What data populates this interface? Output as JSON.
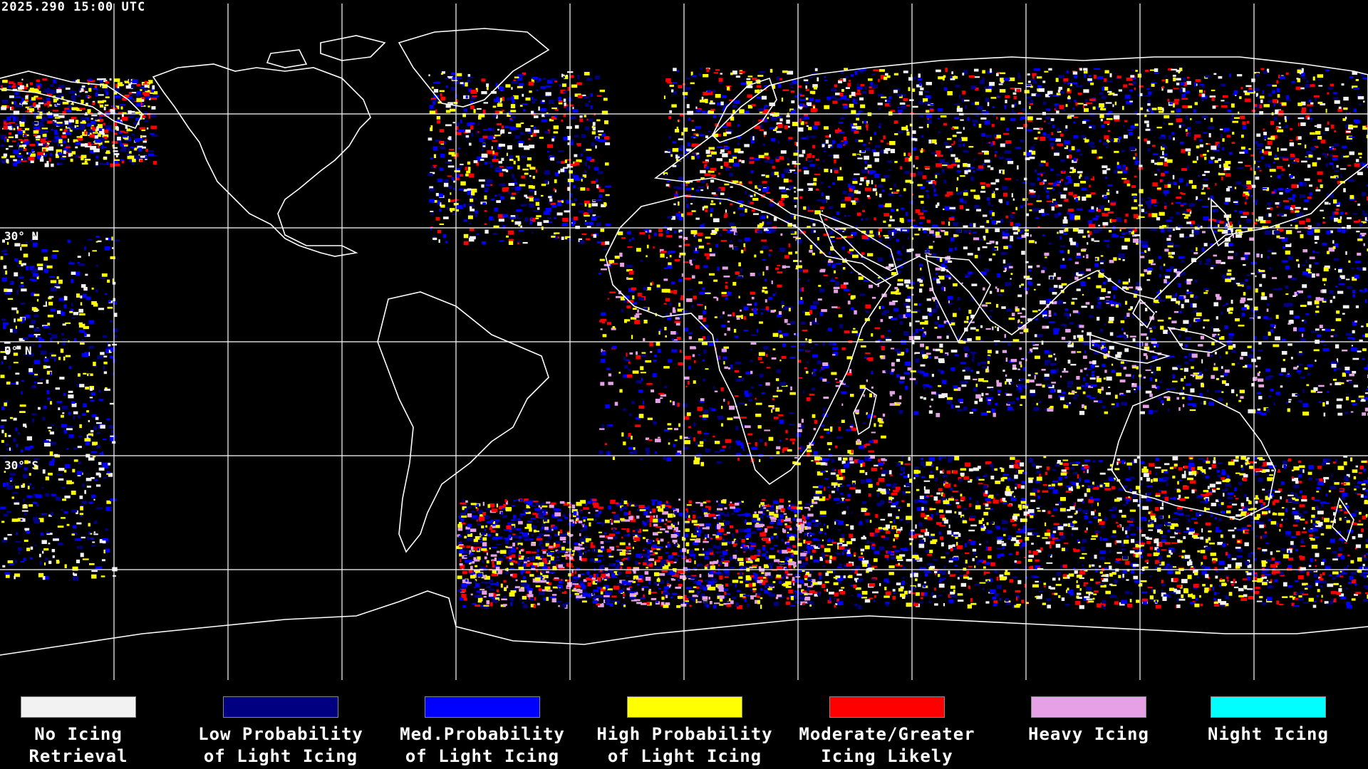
{
  "timestamp": "2025.290 15:00 UTC",
  "lat_labels": [
    "30° N",
    "0° N",
    "30° S"
  ],
  "colors": {
    "no_icing": "#f2f2f2",
    "low_prob": "#000080",
    "med_prob": "#0000ff",
    "high_prob": "#ffff00",
    "moderate": "#ff0000",
    "heavy": "#e6a0e6",
    "night": "#00ffff",
    "coast": "#ffffff",
    "grid": "#ffffff"
  },
  "legend": [
    {
      "label": "No Icing\nRetrieval",
      "color": "#f2f2f2"
    },
    {
      "label": "Low Probability\nof Light Icing",
      "color": "#000080"
    },
    {
      "label": "Med.Probability\nof Light Icing",
      "color": "#0000ff"
    },
    {
      "label": "High Probability\nof Light Icing",
      "color": "#ffff00"
    },
    {
      "label": "Moderate/Greater\nIcing Likely",
      "color": "#ff0000"
    },
    {
      "label": "Heavy Icing",
      "color": "#e6a0e6"
    },
    {
      "label": "Night Icing",
      "color": "#00ffff"
    }
  ]
}
